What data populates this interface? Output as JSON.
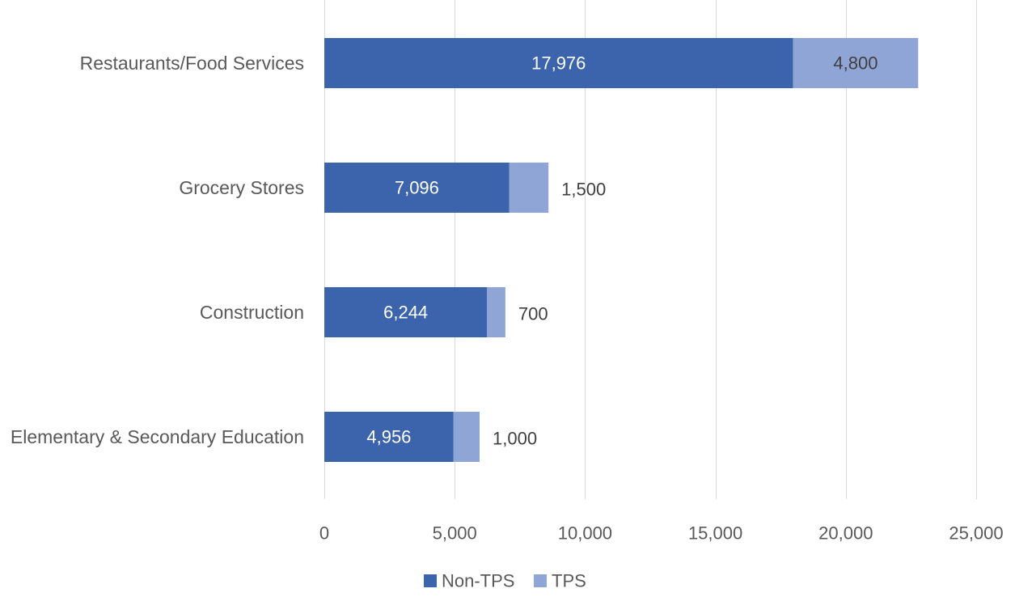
{
  "chart_data": {
    "type": "bar",
    "orientation": "horizontal",
    "stacked": true,
    "categories": [
      "Restaurants/Food Services",
      "Grocery Stores",
      "Construction",
      "Elementary & Secondary Education"
    ],
    "series": [
      {
        "name": "Non-TPS",
        "color": "#3b64ad",
        "values": [
          17976,
          7096,
          6244,
          4956
        ],
        "labels": [
          "17,976",
          "7,096",
          "6,244",
          "4,956"
        ]
      },
      {
        "name": "TPS",
        "color": "#8fa5d6",
        "values": [
          4800,
          1500,
          700,
          1000
        ],
        "labels": [
          "4,800",
          "1,500",
          "700",
          "1,000"
        ]
      }
    ],
    "xlim": [
      0,
      25000
    ],
    "x_ticks": [
      0,
      5000,
      10000,
      15000,
      20000,
      25000
    ],
    "x_tick_labels": [
      "0",
      "5,000",
      "10,000",
      "15,000",
      "20,000",
      "25,000"
    ],
    "grid": true,
    "legend_position": "bottom"
  }
}
